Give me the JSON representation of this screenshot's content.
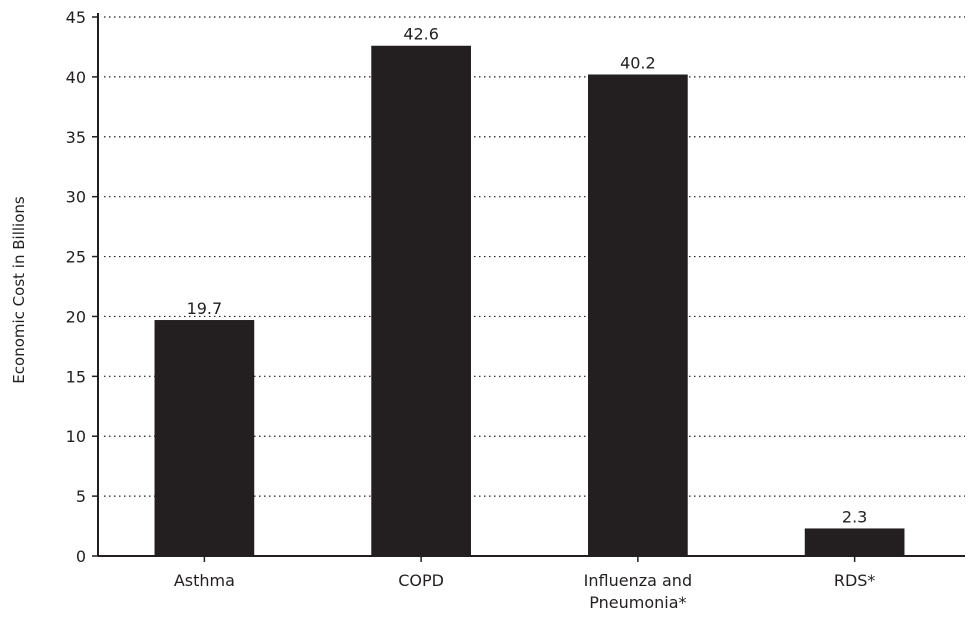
{
  "chart_data": {
    "type": "bar",
    "title": "",
    "xlabel": "",
    "ylabel": "Economic Cost in Billions",
    "ylim": [
      0,
      45
    ],
    "yticks": [
      0,
      5,
      10,
      15,
      20,
      25,
      30,
      35,
      40,
      45
    ],
    "ytick_labels": [
      "0",
      "5",
      "10",
      "15",
      "20",
      "25",
      "30",
      "35",
      "40",
      "45"
    ],
    "grid": "horizontal dotted",
    "categories": [
      [
        "Asthma"
      ],
      [
        "COPD"
      ],
      [
        "Influenza and",
        "Pneumonia*"
      ],
      [
        "RDS*"
      ]
    ],
    "values": [
      19.7,
      42.6,
      40.2,
      2.3
    ],
    "value_labels": [
      "19.7",
      "42.6",
      "40.2",
      "2.3"
    ],
    "bar_color": "#231f20",
    "text_color": "#231f20"
  }
}
